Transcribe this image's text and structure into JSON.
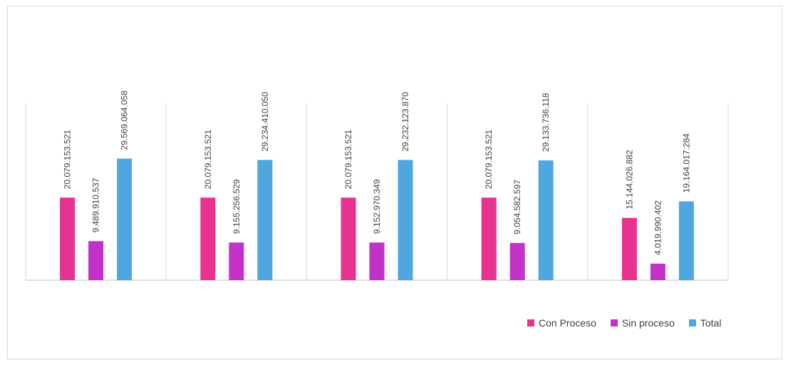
{
  "chart_data": {
    "type": "bar",
    "title": "",
    "xlabel": "",
    "ylabel": "",
    "categories": [
      "",
      "",
      "",
      "",
      ""
    ],
    "series": [
      {
        "name": "Con Proceso",
        "color": "#e7328f",
        "values": [
          20079153521,
          20079153521,
          20079153521,
          20079153521,
          15144026882
        ],
        "labels": [
          "20.079.153.521",
          "20.079.153.521",
          "20.079.153.521",
          "20.079.153.521",
          "15.144.026.882"
        ]
      },
      {
        "name": "Sin proceso",
        "color": "#c232c9",
        "values": [
          9489910537,
          9155256529,
          9152970349,
          9054582597,
          4019990402
        ],
        "labels": [
          "9.489.910.537",
          "9.155.256.529",
          "9.152.970.349",
          "9.054.582.597",
          "4.019.990.402"
        ]
      },
      {
        "name": "Total",
        "color": "#4ea7df",
        "values": [
          29569064058,
          29234410050,
          29232123870,
          29133736118,
          19164017284
        ],
        "labels": [
          "29.569.064.058",
          "29.234.410.050",
          "29.232.123.870",
          "29.133.736.118",
          "19.164.017.284"
        ]
      }
    ],
    "ylim": [
      0,
      43000000000
    ],
    "grid": true,
    "legend_position": "bottom-right"
  }
}
